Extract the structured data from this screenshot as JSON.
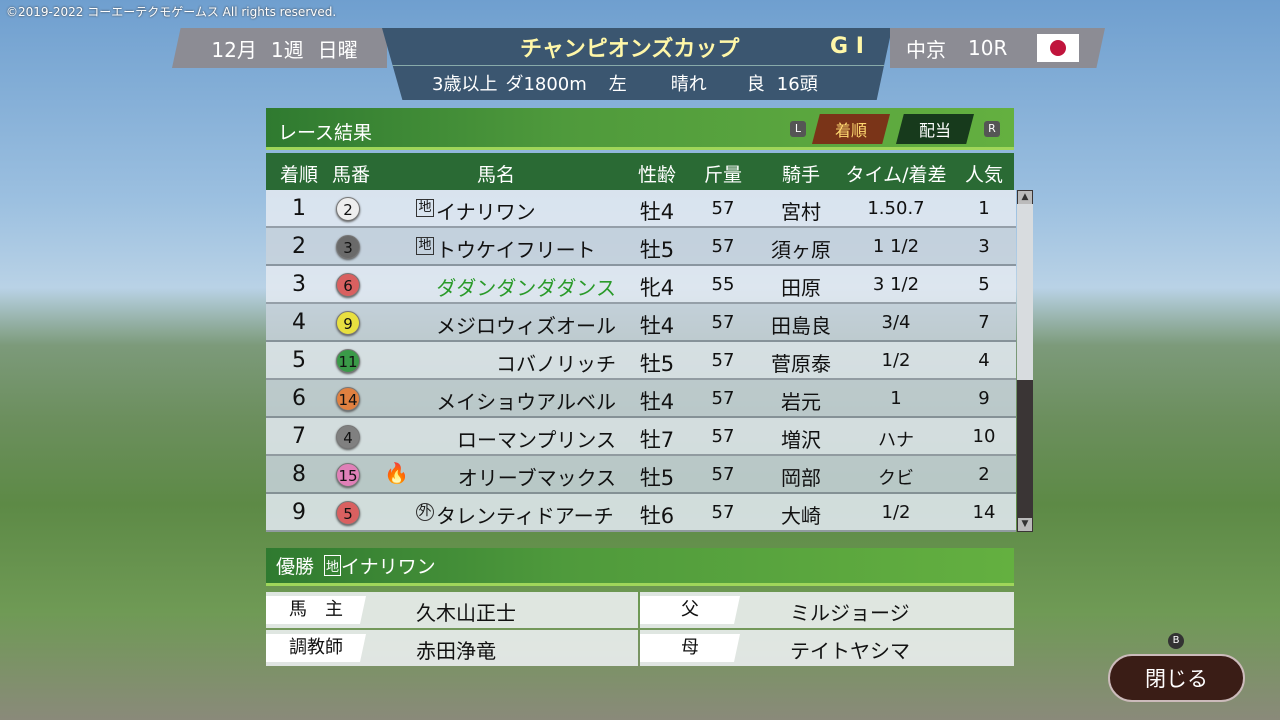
{
  "copyright": "©2019-2022 コーエーテクモゲームス All rights reserved.",
  "race": {
    "month": "12月",
    "week": "1週",
    "day": "日曜",
    "name": "チャンピオンズカップ",
    "grade": "G I",
    "conditions": "3歳以上",
    "course": "ダ1800m",
    "direction": "左",
    "weather": "晴れ",
    "track": "良",
    "runners": "16頭",
    "venue": "中京",
    "race_no": "10R"
  },
  "panel": {
    "title": "レース結果",
    "key_left": "L",
    "key_right": "R",
    "tabs": [
      {
        "label": "着順",
        "active": true
      },
      {
        "label": "配当",
        "active": false
      }
    ]
  },
  "columns": [
    "着順",
    "馬番",
    "馬名",
    "性齢",
    "斤量",
    "騎手",
    "タイム/着差",
    "人気"
  ],
  "rows": [
    {
      "pos": "1",
      "num": "2",
      "num_color": "#eeeeee",
      "mark": "地",
      "name": "イナリワン",
      "sexage": "牡4",
      "weight": "57",
      "jockey": "宮村",
      "margin": "1.50.7",
      "pop": "1"
    },
    {
      "pos": "2",
      "num": "3",
      "num_color": "#6a6a6a",
      "mark": "地",
      "name": "トウケイフリート",
      "sexage": "牡5",
      "weight": "57",
      "jockey": "須ヶ原",
      "margin": "1 1/2",
      "pop": "3"
    },
    {
      "pos": "3",
      "num": "6",
      "num_color": "#d96060",
      "mark": "",
      "name": "ダダンダンダダンス",
      "name_color": "#2a9a2a",
      "sexage": "牝4",
      "weight": "55",
      "jockey": "田原",
      "margin": "3 1/2",
      "pop": "5"
    },
    {
      "pos": "4",
      "num": "9",
      "num_color": "#e8e040",
      "mark": "",
      "name": "メジロウィズオール",
      "sexage": "牡4",
      "weight": "57",
      "jockey": "田島良",
      "margin": "3/4",
      "pop": "7"
    },
    {
      "pos": "5",
      "num": "11",
      "num_color": "#3a9a48",
      "mark": "",
      "name": "コバノリッチ",
      "sexage": "牡5",
      "weight": "57",
      "jockey": "菅原泰",
      "margin": "1/2",
      "pop": "4"
    },
    {
      "pos": "6",
      "num": "14",
      "num_color": "#e08040",
      "mark": "",
      "name": "メイショウアルベル",
      "sexage": "牡4",
      "weight": "57",
      "jockey": "岩元",
      "margin": "1",
      "pop": "9"
    },
    {
      "pos": "7",
      "num": "4",
      "num_color": "#808080",
      "mark": "",
      "name": "ローマンプリンス",
      "sexage": "牡7",
      "weight": "57",
      "jockey": "増沢",
      "margin": "ハナ",
      "pop": "10"
    },
    {
      "pos": "8",
      "num": "15",
      "num_color": "#e080b8",
      "mark": "",
      "icon": "fire-icon",
      "name": "オリーブマックス",
      "sexage": "牡5",
      "weight": "57",
      "jockey": "岡部",
      "margin": "クビ",
      "pop": "2"
    },
    {
      "pos": "9",
      "num": "5",
      "num_color": "#d96060",
      "mark": "外",
      "name": "タレンティドアーチ",
      "sexage": "牡6",
      "weight": "57",
      "jockey": "大崎",
      "margin": "1/2",
      "pop": "14"
    }
  ],
  "scroll_position": 0,
  "winner": {
    "label": "優勝",
    "mark": "地",
    "name": "イナリワン"
  },
  "details": {
    "owner_label": "馬　主",
    "owner": "久木山正士",
    "trainer_label": "調教師",
    "trainer": "赤田浄竜",
    "sire_label": "父",
    "sire": "ミルジョージ",
    "dam_label": "母",
    "dam": "テイトヤシマ"
  },
  "close": {
    "key": "B",
    "label": "閉じる"
  }
}
